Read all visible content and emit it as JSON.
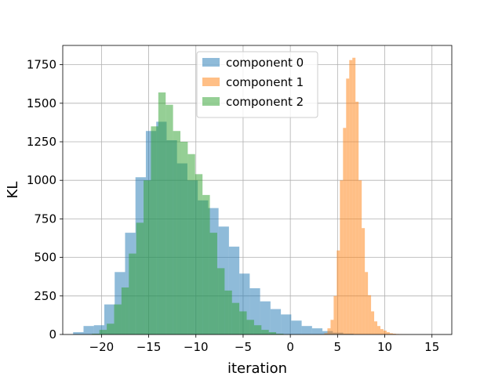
{
  "chart_data": {
    "type": "histogram",
    "xlabel": "iteration",
    "ylabel": "KL",
    "xlim": [
      -24.1,
      17.1
    ],
    "ylim": [
      0,
      1875
    ],
    "xticks": [
      -20,
      -15,
      -10,
      -5,
      0,
      5,
      10,
      15
    ],
    "xtick_labels": [
      "−20",
      "−15",
      "−10",
      "−5",
      "0",
      "5",
      "10",
      "15"
    ],
    "yticks": [
      0,
      250,
      500,
      750,
      1000,
      1250,
      1500,
      1750
    ],
    "ytick_labels": [
      "0",
      "250",
      "500",
      "750",
      "1000",
      "1250",
      "1500",
      "1750"
    ],
    "grid": true,
    "legend_position": "top-center",
    "series": [
      {
        "name": "component 0",
        "color": "#1f77b4",
        "opacity": 0.5,
        "bin_start": -23.0,
        "bin_width": 1.1,
        "counts": [
          15,
          55,
          60,
          195,
          405,
          660,
          1020,
          1320,
          1380,
          1260,
          1110,
          1000,
          870,
          820,
          700,
          570,
          395,
          300,
          215,
          165,
          130,
          90,
          55,
          40,
          22,
          12,
          5
        ]
      },
      {
        "name": "component 1",
        "color": "#ff7f0e",
        "opacity": 0.5,
        "bin_start": 3.6,
        "bin_width": 0.33,
        "counts": [
          8,
          40,
          95,
          250,
          545,
          1000,
          1340,
          1660,
          1780,
          1795,
          1510,
          1000,
          690,
          405,
          255,
          150,
          85,
          55,
          35,
          25,
          15,
          8,
          5,
          3,
          2,
          1,
          1
        ]
      },
      {
        "name": "component 2",
        "color": "#2ca02c",
        "opacity": 0.5,
        "bin_start": -21.0,
        "bin_width": 0.78,
        "counts": [
          5,
          30,
          70,
          195,
          305,
          525,
          725,
          1000,
          1350,
          1570,
          1490,
          1320,
          1250,
          1170,
          1040,
          905,
          660,
          430,
          285,
          205,
          150,
          95,
          60,
          30,
          15,
          5
        ]
      }
    ]
  }
}
